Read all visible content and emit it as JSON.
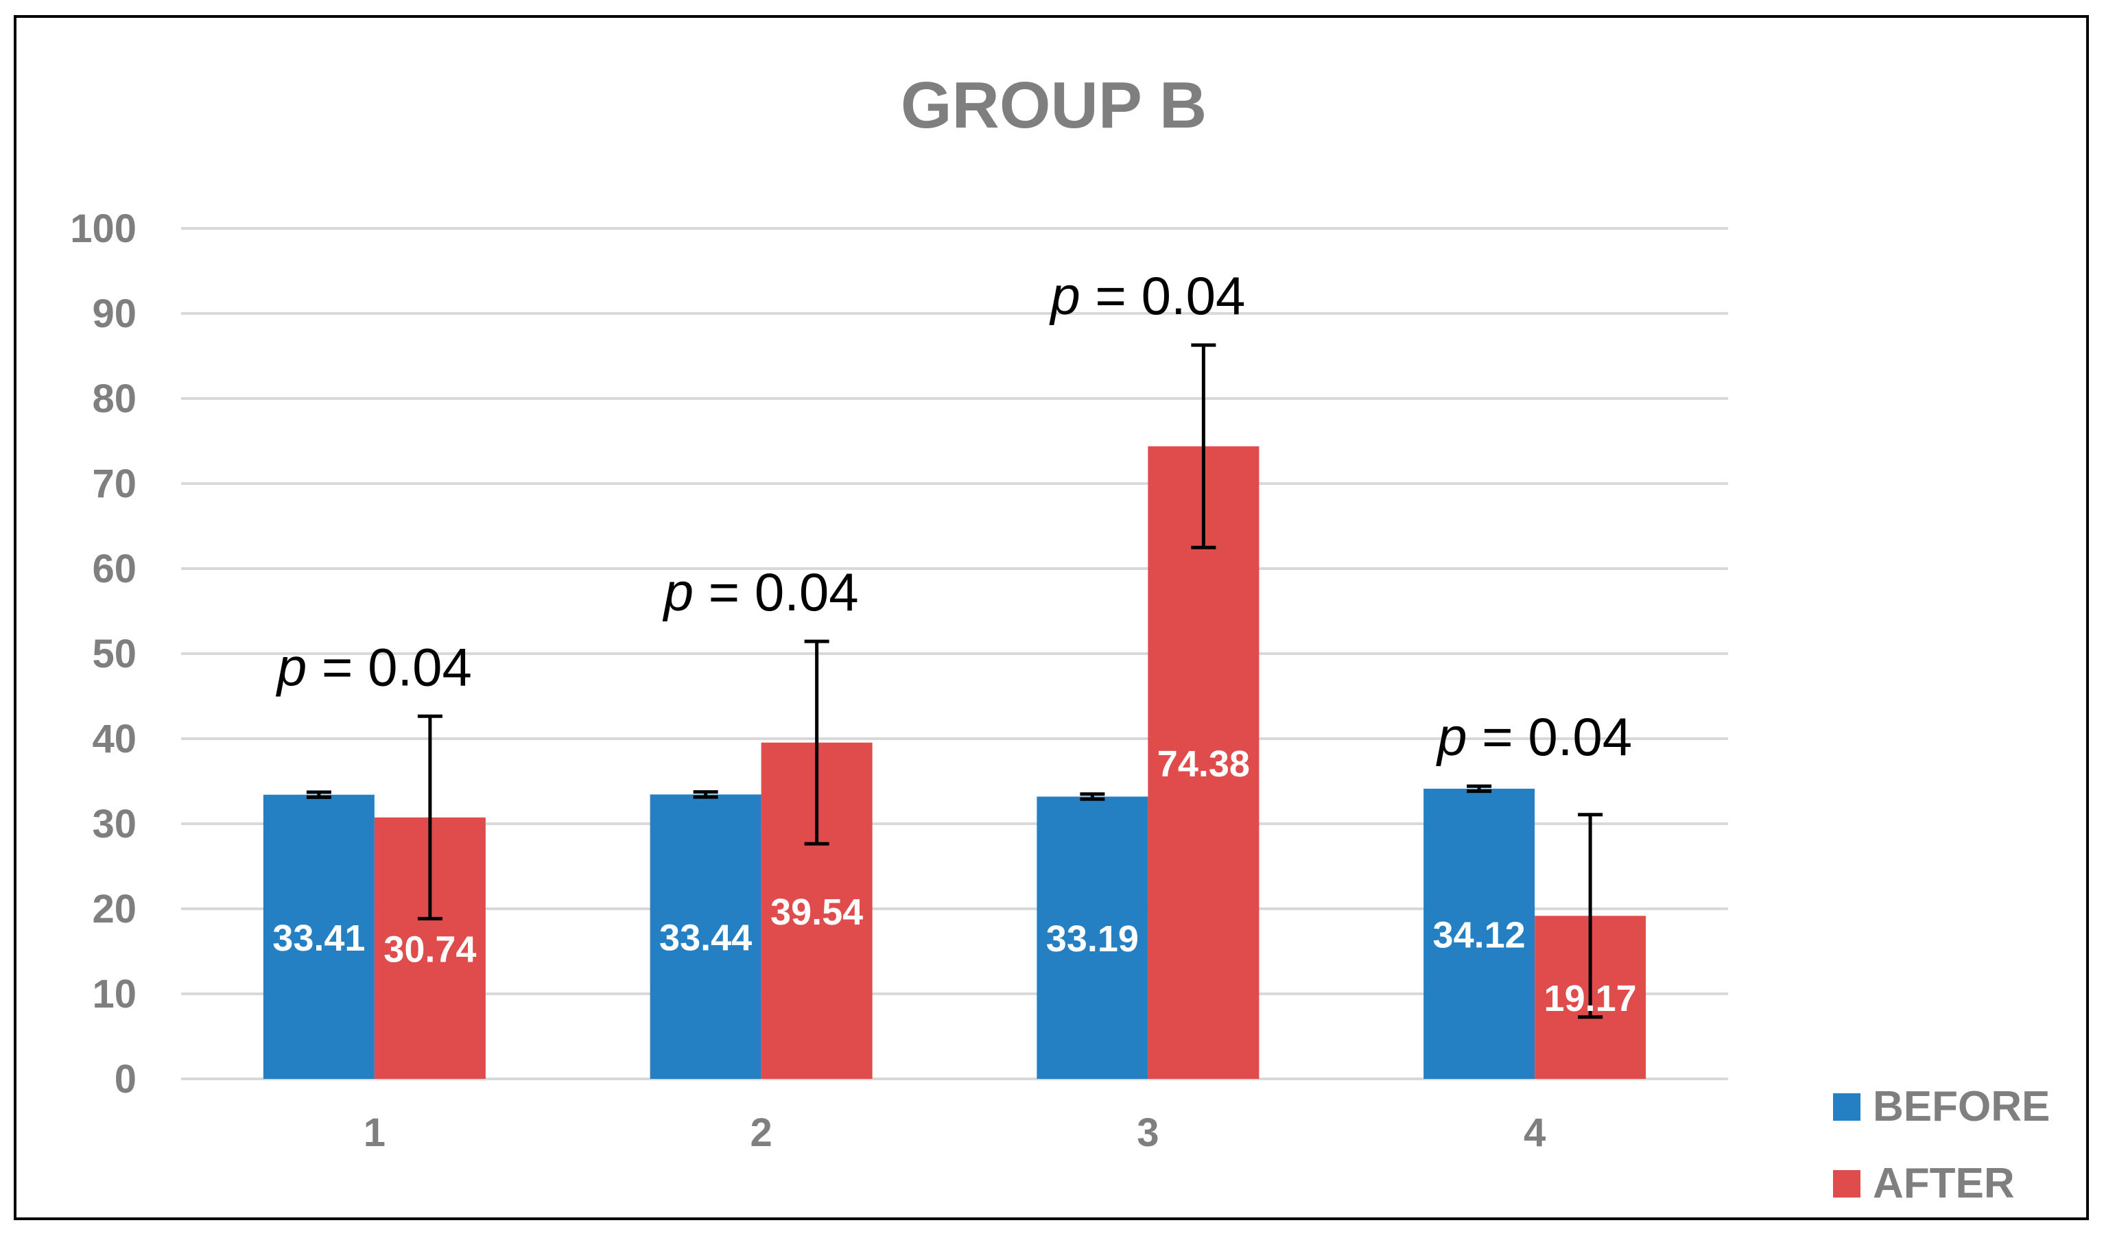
{
  "chart_data": {
    "type": "bar",
    "title": "GROUP B",
    "xlabel": "",
    "ylabel": "",
    "categories": [
      "1",
      "2",
      "3",
      "4"
    ],
    "ylim": [
      0,
      100
    ],
    "yticks": [
      0,
      10,
      20,
      30,
      40,
      50,
      60,
      70,
      80,
      90,
      100
    ],
    "grid": true,
    "legend_position": "bottom-right",
    "series": [
      {
        "name": "BEFORE",
        "color": "#2580c3",
        "values": [
          33.41,
          33.44,
          33.19,
          34.12
        ],
        "labels": [
          "33.41",
          "33.44",
          "33.19",
          "34.12"
        ],
        "error": [
          0.3,
          0.3,
          0.3,
          0.3
        ]
      },
      {
        "name": "AFTER",
        "color": "#e04c4c",
        "values": [
          30.74,
          39.54,
          74.38,
          19.17
        ],
        "labels": [
          "30.74",
          "39.54",
          "74.38",
          "19.17"
        ],
        "error": [
          11.9,
          11.9,
          11.9,
          11.9
        ]
      }
    ],
    "annotations": [
      {
        "category": "1",
        "prefix": "p",
        "text": " = 0.04"
      },
      {
        "category": "2",
        "prefix": "p",
        "text": " = 0.04"
      },
      {
        "category": "3",
        "prefix": "p",
        "text": " = 0.04"
      },
      {
        "category": "4",
        "prefix": "p",
        "text": " = 0.04"
      }
    ]
  }
}
